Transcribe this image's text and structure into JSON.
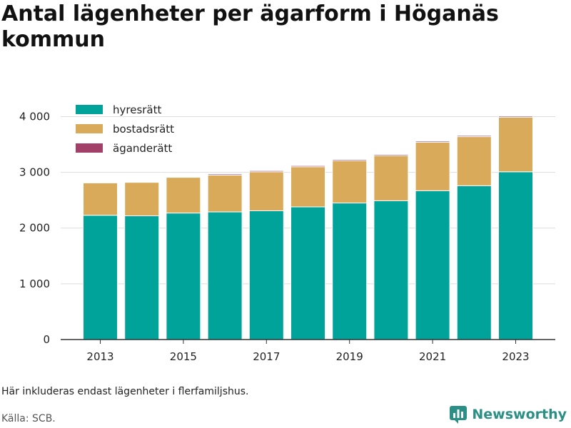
{
  "title": "Antal lägenheter per ägarform i Höganäs kommun",
  "footnote": "Här inkluderas endast lägenheter i flerfamiljshus.",
  "source": "Källa: SCB.",
  "brand": {
    "name": "Newsworthy",
    "color": "#2a8f84",
    "icon": "bar-chart-logo-icon"
  },
  "chart_data": {
    "type": "bar",
    "stacked": true,
    "categories": [
      "2013",
      "2014",
      "2015",
      "2016",
      "2017",
      "2018",
      "2019",
      "2020",
      "2021",
      "2022",
      "2023"
    ],
    "series": [
      {
        "name": "hyresrätt",
        "color": "#00a39a",
        "values": [
          2230,
          2220,
          2270,
          2290,
          2310,
          2380,
          2450,
          2490,
          2670,
          2760,
          3010
        ]
      },
      {
        "name": "bostadsrätt",
        "color": "#d9aa5a",
        "values": [
          580,
          600,
          640,
          660,
          700,
          720,
          760,
          810,
          870,
          880,
          980
        ]
      },
      {
        "name": "äganderätt",
        "color": "#a3406a",
        "values": [
          0,
          0,
          0,
          20,
          20,
          20,
          20,
          20,
          20,
          20,
          20
        ]
      }
    ],
    "x_tick_labels": [
      "2013",
      "2015",
      "2017",
      "2019",
      "2021",
      "2023"
    ],
    "y_ticks": [
      0,
      1000,
      2000,
      3000,
      4000
    ],
    "y_tick_labels": [
      "0",
      "1 000",
      "2 000",
      "3 000",
      "4 000"
    ],
    "ylim": [
      0,
      4300
    ],
    "xlabel": "",
    "ylabel": "",
    "grid": true,
    "legend_position": "top-left"
  }
}
